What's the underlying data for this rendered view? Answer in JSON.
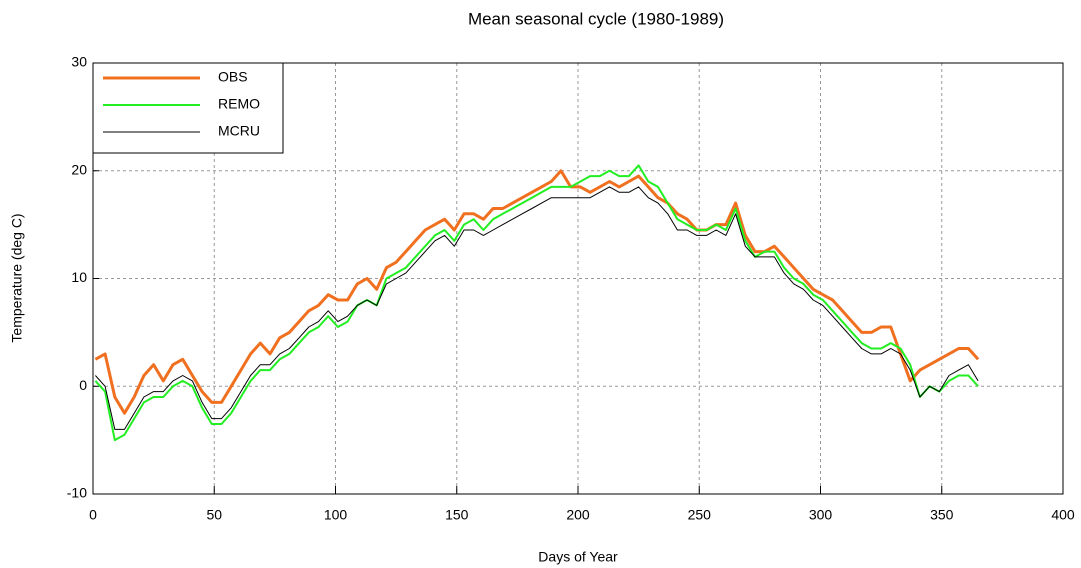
{
  "chart_data": {
    "type": "line",
    "title": "Mean seasonal cycle (1980-1989)",
    "x_label": "Days of Year",
    "y_label": "Temperature (deg C)",
    "xlim": [
      0,
      400
    ],
    "xticks": [
      0,
      50,
      100,
      150,
      200,
      250,
      300,
      350,
      400
    ],
    "ylim": [
      -10,
      30
    ],
    "yticks": [
      -10,
      0,
      10,
      20,
      30
    ],
    "grid": true,
    "legend": "upper left",
    "x": [
      1,
      5,
      9,
      13,
      17,
      21,
      25,
      29,
      33,
      37,
      41,
      45,
      49,
      53,
      57,
      61,
      65,
      69,
      73,
      77,
      81,
      85,
      89,
      93,
      97,
      101,
      105,
      109,
      113,
      117,
      121,
      125,
      129,
      133,
      137,
      141,
      145,
      149,
      153,
      157,
      161,
      165,
      169,
      173,
      177,
      181,
      185,
      189,
      193,
      197,
      201,
      205,
      209,
      213,
      217,
      221,
      225,
      229,
      233,
      237,
      241,
      245,
      249,
      253,
      257,
      261,
      265,
      269,
      273,
      277,
      281,
      285,
      289,
      293,
      297,
      301,
      305,
      309,
      313,
      317,
      321,
      325,
      329,
      333,
      337,
      341,
      345,
      349,
      353,
      357,
      361,
      365
    ],
    "series": [
      {
        "name": "OBS",
        "color": "#f07020",
        "values": [
          2.5,
          3,
          -1,
          -2.5,
          -1,
          1,
          2,
          0.5,
          2,
          2.5,
          1,
          -0.5,
          -1.5,
          -1.5,
          0,
          1.5,
          3,
          4,
          3,
          4.5,
          5,
          6,
          7,
          7.5,
          8.5,
          8,
          8,
          9.5,
          10,
          9,
          11,
          11.5,
          12.5,
          13.5,
          14.5,
          15,
          15.5,
          14.5,
          16,
          16,
          15.5,
          16.5,
          16.5,
          17,
          17.5,
          18,
          18.5,
          19,
          20,
          18.5,
          18.5,
          18,
          18.5,
          19,
          18.5,
          19,
          19.5,
          18.5,
          17.5,
          17,
          16,
          15.5,
          14.5,
          14.5,
          15,
          15,
          17,
          14,
          12.5,
          12.5,
          13,
          12,
          11,
          10,
          9,
          8.5,
          8,
          7,
          6,
          5,
          5,
          5.5,
          5.5,
          3,
          0.5,
          1.5,
          2,
          2.5,
          3,
          3.5,
          3.5,
          2.5
        ]
      },
      {
        "name": "REMO",
        "color": "#22ee22",
        "values": [
          0.5,
          -0.5,
          -5,
          -4.5,
          -3,
          -1.5,
          -1,
          -1,
          0,
          0.5,
          0,
          -2,
          -3.5,
          -3.5,
          -2.5,
          -1,
          0.5,
          1.5,
          1.5,
          2.5,
          3,
          4,
          5,
          5.5,
          6.5,
          5.5,
          6,
          7.5,
          8,
          7.5,
          10,
          10.5,
          11,
          12,
          13,
          14,
          14.5,
          13.5,
          15,
          15.5,
          14.5,
          15.5,
          16,
          16.5,
          17,
          17.5,
          18,
          18.5,
          18.5,
          18.5,
          19,
          19.5,
          19.5,
          20,
          19.5,
          19.5,
          20.5,
          19,
          18.5,
          17,
          15.5,
          15,
          14.5,
          14.5,
          15,
          14.5,
          16.5,
          13.5,
          12,
          12.5,
          12.5,
          11,
          10,
          9.5,
          8.5,
          8,
          7,
          6,
          5,
          4,
          3.5,
          3.5,
          4,
          3.5,
          2,
          -1,
          0,
          -0.5,
          0.5,
          1,
          1,
          0
        ]
      },
      {
        "name": "MCRU",
        "color": "#000000",
        "values": [
          1,
          0,
          -4,
          -4,
          -2.5,
          -1,
          -0.5,
          -0.5,
          0.5,
          1,
          0.5,
          -1.5,
          -3,
          -3,
          -2,
          -0.5,
          1,
          2,
          2,
          3,
          3.5,
          4.5,
          5.5,
          6,
          7,
          6,
          6.5,
          7.5,
          8,
          7.5,
          9.5,
          10,
          10.5,
          11.5,
          12.5,
          13.5,
          14,
          13,
          14.5,
          14.5,
          14,
          14.5,
          15,
          15.5,
          16,
          16.5,
          17,
          17.5,
          17.5,
          17.5,
          17.5,
          17.5,
          18,
          18.5,
          18,
          18,
          18.5,
          17.5,
          17,
          16,
          14.5,
          14.5,
          14,
          14,
          14.5,
          14,
          16,
          13,
          12,
          12,
          12,
          10.5,
          9.5,
          9,
          8,
          7.5,
          6.5,
          5.5,
          4.5,
          3.5,
          3,
          3,
          3.5,
          3,
          1.5,
          -1,
          0,
          -0.5,
          1,
          1.5,
          2,
          0.5
        ]
      }
    ]
  }
}
